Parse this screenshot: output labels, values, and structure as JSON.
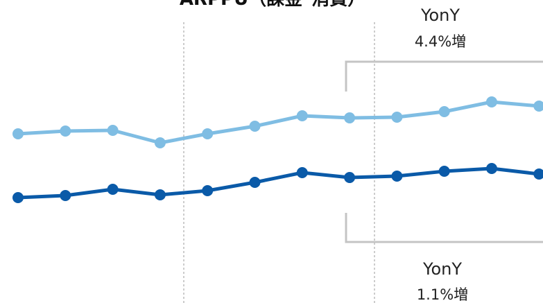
{
  "chart_data": {
    "type": "line",
    "title": "ARPPU（課金･消費）",
    "xlabel": "",
    "ylabel": "",
    "grid": false,
    "legend": "none",
    "series": [
      {
        "color": "#7fbde3",
        "values": [
          193,
          189,
          188,
          206,
          193,
          182,
          167,
          170,
          169,
          161,
          147,
          153
        ]
      },
      {
        "color": "#0a5aa8",
        "values": [
          285,
          282,
          273,
          281,
          275,
          263,
          249,
          256,
          254,
          247,
          243,
          251
        ]
      }
    ],
    "annotations": [
      {
        "line1": "YonY",
        "line2": "4.4%増"
      },
      {
        "line1": "YonY",
        "line2": "1.1%増"
      }
    ],
    "colors": {
      "divider": "#999999",
      "bracket": "#c4c4c4"
    }
  }
}
